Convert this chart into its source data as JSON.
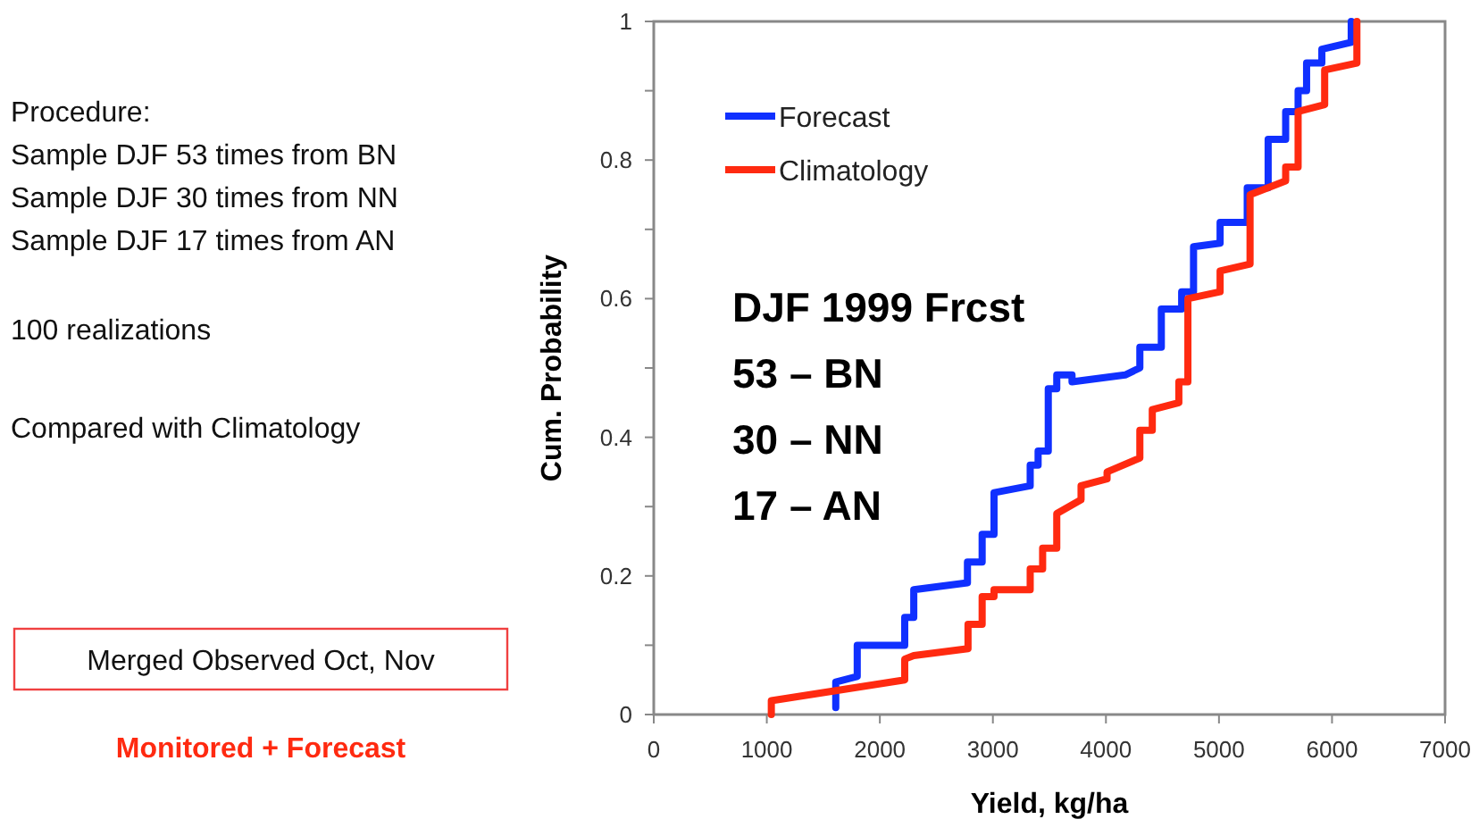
{
  "chart_data": {
    "type": "line",
    "xlabel": "Yield, kg/ha",
    "ylabel": "Cum. Probability",
    "xlim": [
      0,
      7000
    ],
    "ylim": [
      0,
      1
    ],
    "xticks": [
      0,
      1000,
      2000,
      3000,
      4000,
      5000,
      6000,
      7000
    ],
    "yticks": [
      0,
      {
        "value": 0.1,
        "label": null
      },
      0.2,
      {
        "value": 0.3,
        "label": null
      },
      0.4,
      {
        "value": 0.5,
        "label": null
      },
      0.6,
      {
        "value": 0.7,
        "label": null
      },
      0.8,
      {
        "value": 0.9,
        "label": null
      },
      1
    ],
    "legend": "top left",
    "grid": false,
    "line_style": "solid",
    "series": [
      {
        "name": "Forecast",
        "color": "#1030ff",
        "x": [
          1610,
          1610,
          1800,
          1800,
          2220,
          2220,
          2300,
          2300,
          2775,
          2775,
          2905,
          2905,
          3010,
          3010,
          3330,
          3330,
          3400,
          3400,
          3490,
          3490,
          3565,
          3565,
          3700,
          3700,
          4170,
          4300,
          4300,
          4490,
          4490,
          4670,
          4670,
          4775,
          4775,
          5010,
          5010,
          5250,
          5250,
          5435,
          5435,
          5590,
          5590,
          5700,
          5700,
          5775,
          5775,
          5910,
          5910,
          6170,
          6170
        ],
        "values": [
          0.01,
          0.047,
          0.055,
          0.1,
          0.1,
          0.14,
          0.14,
          0.18,
          0.19,
          0.22,
          0.22,
          0.26,
          0.26,
          0.32,
          0.33,
          0.36,
          0.36,
          0.38,
          0.38,
          0.47,
          0.47,
          0.49,
          0.49,
          0.48,
          0.49,
          0.5,
          0.53,
          0.53,
          0.585,
          0.585,
          0.61,
          0.61,
          0.675,
          0.68,
          0.71,
          0.71,
          0.76,
          0.76,
          0.83,
          0.83,
          0.87,
          0.87,
          0.9,
          0.9,
          0.94,
          0.94,
          0.96,
          0.97,
          1
        ]
      },
      {
        "name": "Climatology",
        "color": "#ff2a10",
        "x": [
          1040,
          1040,
          2220,
          2220,
          2300,
          2780,
          2780,
          2905,
          2905,
          3010,
          3010,
          3330,
          3330,
          3440,
          3440,
          3565,
          3565,
          3780,
          3780,
          4010,
          4010,
          4300,
          4300,
          4410,
          4410,
          4645,
          4645,
          4725,
          4725,
          5010,
          5010,
          5275,
          5275,
          5590,
          5590,
          5700,
          5700,
          5935,
          5935,
          6220,
          6220
        ],
        "values": [
          0.0,
          0.02,
          0.05,
          0.08,
          0.085,
          0.095,
          0.13,
          0.13,
          0.17,
          0.17,
          0.18,
          0.18,
          0.21,
          0.21,
          0.24,
          0.24,
          0.29,
          0.31,
          0.33,
          0.34,
          0.35,
          0.37,
          0.41,
          0.41,
          0.44,
          0.45,
          0.48,
          0.48,
          0.6,
          0.61,
          0.64,
          0.65,
          0.75,
          0.77,
          0.79,
          0.79,
          0.87,
          0.88,
          0.93,
          0.94,
          1
        ]
      }
    ],
    "annotations": [
      "Procedure:",
      "Sample DJF 53 times from BN",
      "Sample DJF 30 times from NN",
      "Sample DJF 17 times from AN",
      "100 realizations",
      "Compared with Climatology",
      "Merged Observed Oct, Nov",
      "Monitored + Forecast",
      "DJF 1999 Frcst",
      "53 – BN",
      "30 – NN",
      "17 – AN"
    ]
  }
}
